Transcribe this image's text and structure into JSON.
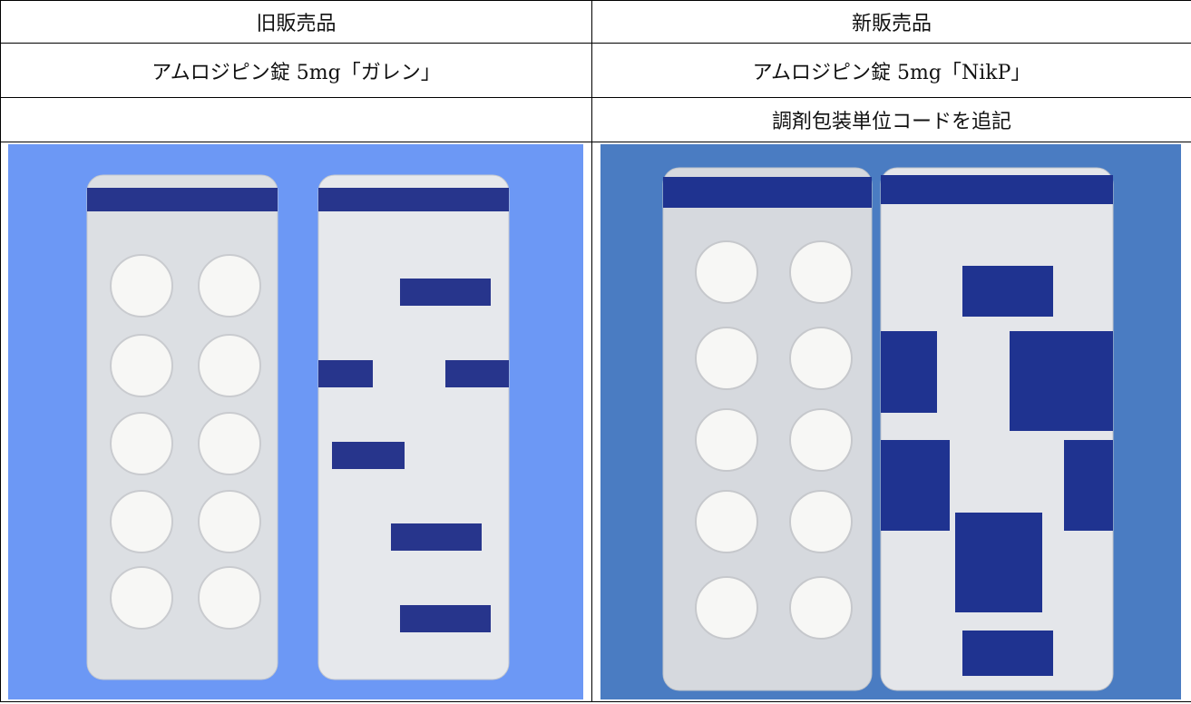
{
  "header": [
    "旧販売品",
    "新販売品"
  ],
  "product_names": [
    "アムロジピン錠 5mg「ガレン」",
    "アムロジピン錠 5mg「NikP」"
  ],
  "new_product_note": "調剤包装単位コードを追記"
}
